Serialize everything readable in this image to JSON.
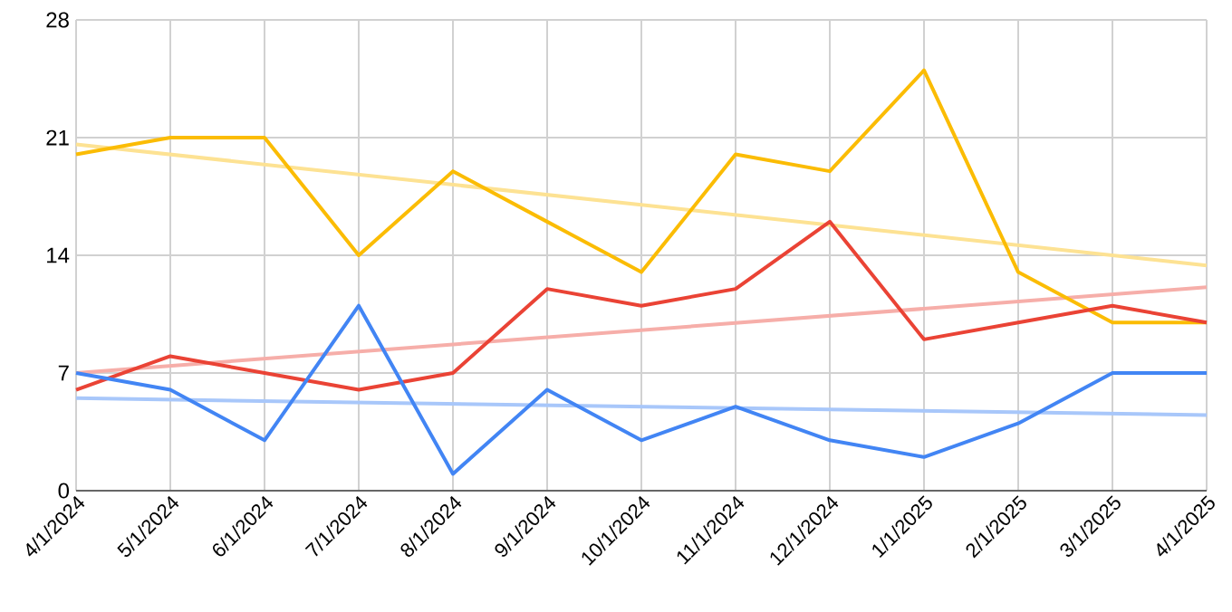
{
  "chart_data": {
    "type": "line",
    "categories": [
      "4/1/2024",
      "5/1/2024",
      "6/1/2024",
      "7/1/2024",
      "8/1/2024",
      "9/1/2024",
      "10/1/2024",
      "11/1/2024",
      "12/1/2024",
      "1/1/2025",
      "2/1/2025",
      "3/1/2025",
      "4/1/2025"
    ],
    "series": [
      {
        "color": "#fbbc04",
        "values": [
          20,
          21,
          21,
          14,
          19,
          16,
          13,
          20,
          19,
          25,
          13,
          10,
          10
        ]
      },
      {
        "color": "#ea4335",
        "values": [
          6,
          8,
          7,
          6,
          7,
          12,
          11,
          12,
          16,
          9,
          10,
          11,
          10
        ]
      },
      {
        "color": "#4285f4",
        "values": [
          7,
          6,
          3,
          11,
          1,
          6,
          3,
          5,
          3,
          2,
          4,
          7,
          7
        ]
      },
      {
        "color": "#fde293",
        "x": [
          "4/1/2024",
          "4/1/2025"
        ],
        "values": [
          20.6,
          13.4
        ]
      },
      {
        "color": "#f6aea9",
        "x": [
          "4/1/2024",
          "4/1/2025"
        ],
        "values": [
          7.0,
          12.1
        ]
      },
      {
        "color": "#a8c7fa",
        "x": [
          "4/1/2024",
          "4/1/2025"
        ],
        "values": [
          5.5,
          4.5
        ]
      }
    ],
    "ylim": [
      0,
      28
    ],
    "yticks": [
      0,
      7,
      14,
      21,
      28
    ],
    "grid": true,
    "marker": "none",
    "line_style": "solid"
  }
}
